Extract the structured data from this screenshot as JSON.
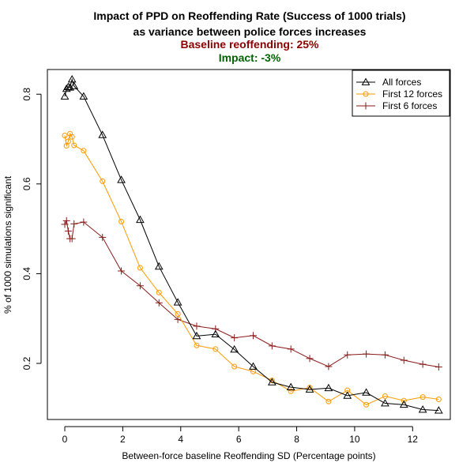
{
  "chart_data": {
    "type": "line",
    "title": [
      "Impact of PPD on Reoffending Rate (Success of 1000 trials)",
      "as variance between police forces increases"
    ],
    "annotations": [
      {
        "text": "Baseline reoffending: 25%",
        "color": "#8b0000"
      },
      {
        "text": "Impact: -3%",
        "color": "#006400"
      }
    ],
    "xlabel": "Between-force baseline Reoffending SD (Percentage points)",
    "ylabel": "% of 1000 simulations significant",
    "xlim": [
      -0.6,
      13.3
    ],
    "ylim": [
      0.075,
      0.855
    ],
    "xticks": [
      0,
      2,
      4,
      6,
      8,
      10,
      12
    ],
    "yticks": [
      0.2,
      0.4,
      0.6,
      0.8
    ],
    "xtick_labels": [
      "0",
      "2",
      "4",
      "6",
      "8",
      "10",
      "12"
    ],
    "ytick_labels": [
      "0.2",
      "0.4",
      "0.6",
      "0.8"
    ],
    "legend_position": "top-right",
    "series": [
      {
        "name": "All forces",
        "color": "#000000",
        "marker": "triangle",
        "x": [
          0,
          0.06,
          0.12,
          0.18,
          0.25,
          0.32,
          0.65,
          1.3,
          1.95,
          2.6,
          3.25,
          3.9,
          4.55,
          5.2,
          5.85,
          6.5,
          7.15,
          7.8,
          8.45,
          9.1,
          9.75,
          10.4,
          11.05,
          11.7,
          12.35,
          12.9
        ],
        "y": [
          0.795,
          0.812,
          0.816,
          0.815,
          0.833,
          0.818,
          0.795,
          0.709,
          0.609,
          0.52,
          0.416,
          0.336,
          0.261,
          0.265,
          0.231,
          0.193,
          0.158,
          0.147,
          0.142,
          0.145,
          0.128,
          0.135,
          0.111,
          0.108,
          0.097,
          0.095
        ]
      },
      {
        "name": "First 12 forces",
        "color": "#ff9900",
        "marker": "circle",
        "x": [
          0,
          0.06,
          0.12,
          0.18,
          0.25,
          0.32,
          0.65,
          1.3,
          1.95,
          2.6,
          3.25,
          3.9,
          4.55,
          5.2,
          5.85,
          6.5,
          7.15,
          7.8,
          8.45,
          9.1,
          9.75,
          10.4,
          11.05,
          11.7,
          12.35,
          12.9
        ],
        "y": [
          0.708,
          0.685,
          0.695,
          0.712,
          0.705,
          0.686,
          0.674,
          0.606,
          0.516,
          0.413,
          0.358,
          0.31,
          0.24,
          0.232,
          0.193,
          0.182,
          0.162,
          0.138,
          0.146,
          0.115,
          0.14,
          0.108,
          0.127,
          0.117,
          0.125,
          0.12
        ]
      },
      {
        "name": "First 6 forces",
        "color": "#8b1a1a",
        "marker": "plus",
        "x": [
          0,
          0.06,
          0.12,
          0.18,
          0.25,
          0.32,
          0.65,
          1.3,
          1.95,
          2.6,
          3.25,
          3.9,
          4.55,
          5.2,
          5.85,
          6.5,
          7.15,
          7.8,
          8.45,
          9.1,
          9.75,
          10.4,
          11.05,
          11.7,
          12.35,
          12.9
        ],
        "y": [
          0.51,
          0.518,
          0.495,
          0.478,
          0.478,
          0.511,
          0.515,
          0.481,
          0.406,
          0.373,
          0.335,
          0.298,
          0.283,
          0.277,
          0.257,
          0.262,
          0.239,
          0.232,
          0.211,
          0.193,
          0.219,
          0.221,
          0.219,
          0.207,
          0.198,
          0.192
        ]
      }
    ]
  }
}
